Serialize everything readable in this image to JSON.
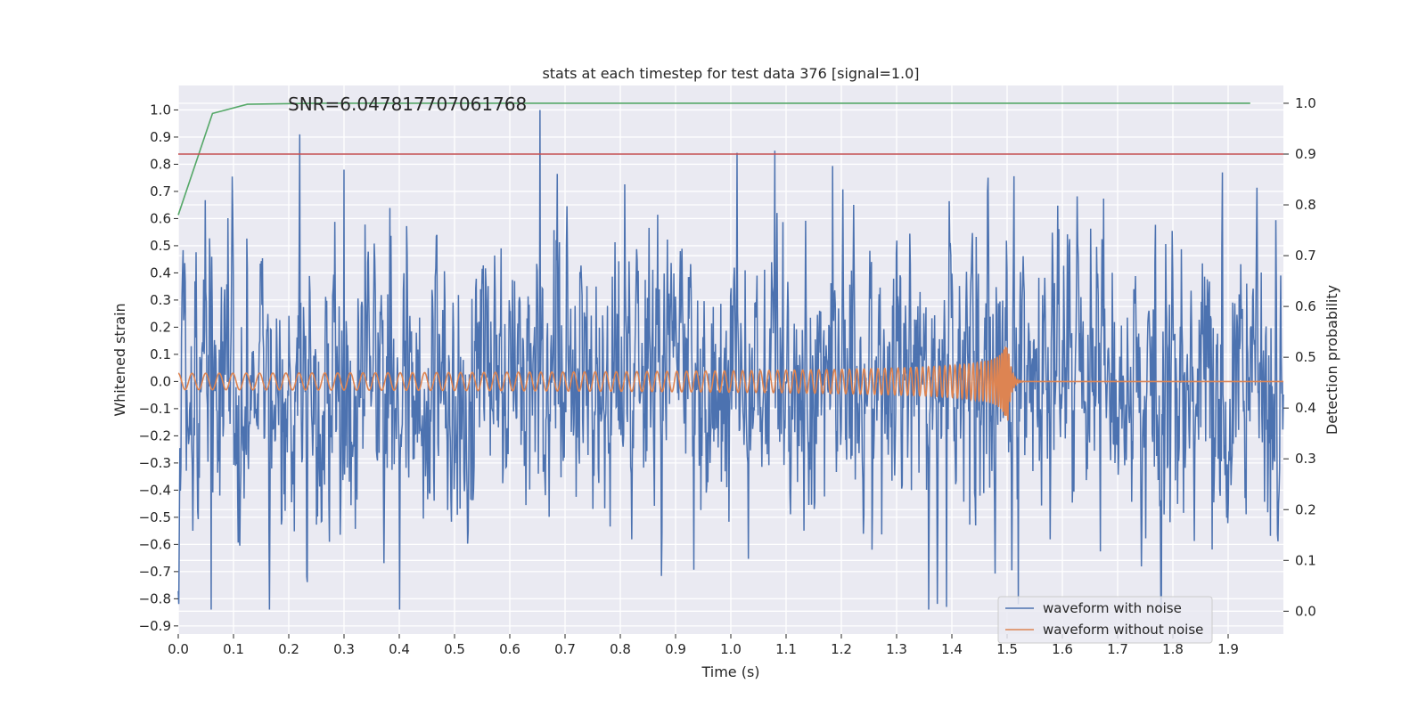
{
  "chart_data": {
    "type": "line",
    "title": "stats at each timestep for test data 376 [signal=1.0]",
    "annotation": "SNR=6.047817707061768",
    "xlabel": "Time (s)",
    "ylabel_left": "Whitened strain",
    "ylabel_right": "Detection probability",
    "xlim": [
      0.0,
      2.0
    ],
    "ylim_left": [
      -0.93,
      1.09
    ],
    "ylim_right": [
      -0.045,
      1.035
    ],
    "x_ticks": [
      "0.0",
      "0.1",
      "0.2",
      "0.3",
      "0.4",
      "0.5",
      "0.6",
      "0.7",
      "0.8",
      "0.9",
      "1.0",
      "1.1",
      "1.2",
      "1.3",
      "1.4",
      "1.5",
      "1.6",
      "1.7",
      "1.8",
      "1.9"
    ],
    "y_left_ticks": [
      "−0.9",
      "−0.8",
      "−0.7",
      "−0.6",
      "−0.5",
      "−0.4",
      "−0.3",
      "−0.2",
      "−0.1",
      "0.0",
      "0.1",
      "0.2",
      "0.3",
      "0.4",
      "0.5",
      "0.6",
      "0.7",
      "0.8",
      "0.9",
      "1.0"
    ],
    "y_right_ticks": [
      "0.0",
      "0.1",
      "0.2",
      "0.3",
      "0.4",
      "0.5",
      "0.6",
      "0.7",
      "0.8",
      "0.9",
      "1.0"
    ],
    "grid": true,
    "legend_position": "bottom-right",
    "series": [
      {
        "name": "waveform with noise",
        "axis": "left",
        "color": "#4c72b0",
        "approx": {
          "sample_count": 2048,
          "sigma": 0.26
        },
        "notable_peaks": [
          {
            "x": 0.22,
            "y": 0.91
          },
          {
            "x": 0.3,
            "y": 0.78
          },
          {
            "x": 0.655,
            "y": 1.0
          },
          {
            "x": 1.08,
            "y": 0.85
          },
          {
            "x": 1.89,
            "y": 0.77
          },
          {
            "x": 0.06,
            "y": -0.84
          },
          {
            "x": 1.39,
            "y": -0.83
          },
          {
            "x": 1.52,
            "y": -0.82
          }
        ]
      },
      {
        "name": "waveform without noise",
        "axis": "left",
        "color": "#dd8452",
        "approx": {
          "form": "chirp",
          "merger_time": 1.5,
          "start_amplitude": 0.03,
          "peak_amplitude": 0.18,
          "start_frequency_hz": 40
        }
      },
      {
        "name": "",
        "axis": "right",
        "color": "#55a868",
        "x": [
          0.0,
          0.062,
          0.125,
          0.25,
          0.5,
          1.0,
          1.5,
          1.94
        ],
        "y": [
          0.78,
          0.98,
          0.998,
          1.0,
          1.0,
          1.0,
          1.0,
          1.0
        ]
      },
      {
        "name": "",
        "axis": "right",
        "color": "#c44e52",
        "x": [
          0.0,
          2.0
        ],
        "y": [
          0.9,
          0.9
        ]
      }
    ]
  }
}
